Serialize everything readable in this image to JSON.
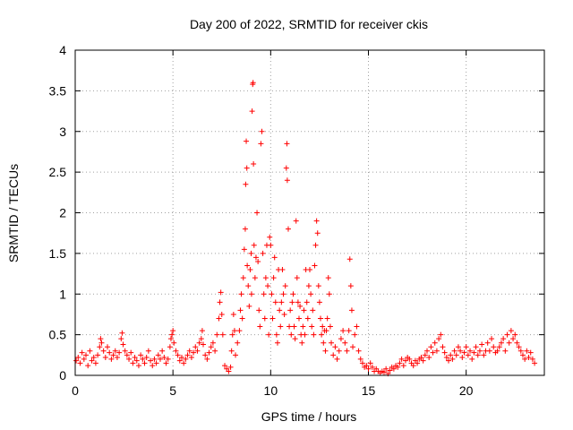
{
  "chart_data": {
    "type": "scatter",
    "title": "Day 200 of 2022, SRMTID for receiver ckis",
    "xlabel": "GPS time / hours",
    "ylabel": "SRMTID / TECUs",
    "xlim": [
      0,
      24
    ],
    "ylim": [
      0,
      4
    ],
    "xticks": [
      0,
      5,
      10,
      15,
      20
    ],
    "yticks": [
      0,
      0.5,
      1,
      1.5,
      2,
      2.5,
      3,
      3.5,
      4
    ],
    "grid": true,
    "marker": "+",
    "color": "#ff0000",
    "series": [
      {
        "name": "SRMTID",
        "points": [
          [
            0.05,
            0.18
          ],
          [
            0.15,
            0.22
          ],
          [
            0.25,
            0.15
          ],
          [
            0.35,
            0.28
          ],
          [
            0.45,
            0.2
          ],
          [
            0.55,
            0.25
          ],
          [
            0.65,
            0.12
          ],
          [
            0.75,
            0.3
          ],
          [
            0.85,
            0.18
          ],
          [
            0.95,
            0.22
          ],
          [
            1.05,
            0.15
          ],
          [
            1.15,
            0.25
          ],
          [
            1.25,
            0.35
          ],
          [
            1.3,
            0.45
          ],
          [
            1.35,
            0.4
          ],
          [
            1.45,
            0.3
          ],
          [
            1.55,
            0.22
          ],
          [
            1.65,
            0.35
          ],
          [
            1.75,
            0.28
          ],
          [
            1.85,
            0.2
          ],
          [
            1.95,
            0.25
          ],
          [
            2.05,
            0.3
          ],
          [
            2.15,
            0.22
          ],
          [
            2.25,
            0.28
          ],
          [
            2.35,
            0.45
          ],
          [
            2.4,
            0.52
          ],
          [
            2.45,
            0.38
          ],
          [
            2.55,
            0.3
          ],
          [
            2.65,
            0.25
          ],
          [
            2.75,
            0.2
          ],
          [
            2.85,
            0.28
          ],
          [
            2.95,
            0.15
          ],
          [
            3.05,
            0.22
          ],
          [
            3.15,
            0.18
          ],
          [
            3.25,
            0.12
          ],
          [
            3.35,
            0.25
          ],
          [
            3.45,
            0.2
          ],
          [
            3.55,
            0.15
          ],
          [
            3.65,
            0.22
          ],
          [
            3.75,
            0.3
          ],
          [
            3.85,
            0.18
          ],
          [
            3.95,
            0.12
          ],
          [
            4.05,
            0.2
          ],
          [
            4.15,
            0.15
          ],
          [
            4.25,
            0.25
          ],
          [
            4.35,
            0.2
          ],
          [
            4.45,
            0.3
          ],
          [
            4.55,
            0.22
          ],
          [
            4.65,
            0.15
          ],
          [
            4.75,
            0.2
          ],
          [
            4.85,
            0.35
          ],
          [
            4.9,
            0.45
          ],
          [
            4.95,
            0.5
          ],
          [
            5.0,
            0.55
          ],
          [
            5.05,
            0.4
          ],
          [
            5.15,
            0.3
          ],
          [
            5.25,
            0.25
          ],
          [
            5.35,
            0.18
          ],
          [
            5.45,
            0.22
          ],
          [
            5.55,
            0.15
          ],
          [
            5.65,
            0.2
          ],
          [
            5.75,
            0.25
          ],
          [
            5.85,
            0.3
          ],
          [
            5.95,
            0.22
          ],
          [
            6.05,
            0.28
          ],
          [
            6.15,
            0.35
          ],
          [
            6.25,
            0.3
          ],
          [
            6.35,
            0.4
          ],
          [
            6.45,
            0.45
          ],
          [
            6.5,
            0.55
          ],
          [
            6.55,
            0.38
          ],
          [
            6.65,
            0.25
          ],
          [
            6.75,
            0.2
          ],
          [
            6.85,
            0.28
          ],
          [
            6.95,
            0.35
          ],
          [
            7.05,
            0.4
          ],
          [
            7.15,
            0.3
          ],
          [
            7.25,
            0.5
          ],
          [
            7.35,
            0.7
          ],
          [
            7.4,
            0.9
          ],
          [
            7.45,
            1.02
          ],
          [
            7.5,
            0.75
          ],
          [
            7.55,
            0.5
          ],
          [
            7.65,
            0.12
          ],
          [
            7.75,
            0.08
          ],
          [
            7.85,
            0.05
          ],
          [
            7.95,
            0.1
          ],
          [
            8.0,
            0.3
          ],
          [
            8.05,
            0.5
          ],
          [
            8.1,
            0.75
          ],
          [
            8.15,
            0.55
          ],
          [
            8.2,
            0.25
          ],
          [
            8.3,
            0.4
          ],
          [
            8.4,
            0.55
          ],
          [
            8.45,
            0.8
          ],
          [
            8.5,
            1.0
          ],
          [
            8.55,
            0.7
          ],
          [
            8.6,
            1.2
          ],
          [
            8.65,
            1.55
          ],
          [
            8.7,
            1.8
          ],
          [
            8.72,
            2.35
          ],
          [
            8.75,
            2.88
          ],
          [
            8.78,
            2.55
          ],
          [
            8.8,
            1.35
          ],
          [
            8.85,
            1.1
          ],
          [
            8.9,
            0.85
          ],
          [
            8.95,
            1.3
          ],
          [
            9.0,
            1.5
          ],
          [
            9.02,
            1.0
          ],
          [
            9.05,
            3.25
          ],
          [
            9.08,
            3.58
          ],
          [
            9.1,
            3.6
          ],
          [
            9.12,
            2.6
          ],
          [
            9.15,
            1.6
          ],
          [
            9.2,
            1.2
          ],
          [
            9.25,
            1.45
          ],
          [
            9.3,
            2.0
          ],
          [
            9.35,
            1.4
          ],
          [
            9.4,
            0.8
          ],
          [
            9.45,
            0.6
          ],
          [
            9.5,
            2.85
          ],
          [
            9.55,
            3.0
          ],
          [
            9.6,
            1.5
          ],
          [
            9.65,
            1.0
          ],
          [
            9.7,
            0.7
          ],
          [
            9.75,
            1.2
          ],
          [
            9.8,
            1.6
          ],
          [
            9.85,
            1.1
          ],
          [
            9.9,
            0.5
          ],
          [
            9.95,
            1.7
          ],
          [
            10.0,
            1.6
          ],
          [
            10.05,
            1.0
          ],
          [
            10.1,
            0.7
          ],
          [
            10.15,
            1.2
          ],
          [
            10.2,
            1.45
          ],
          [
            10.25,
            0.9
          ],
          [
            10.3,
            0.5
          ],
          [
            10.35,
            0.4
          ],
          [
            10.4,
            1.3
          ],
          [
            10.45,
            0.8
          ],
          [
            10.5,
            0.6
          ],
          [
            10.55,
            0.9
          ],
          [
            10.6,
            1.3
          ],
          [
            10.65,
            1.0
          ],
          [
            10.7,
            0.75
          ],
          [
            10.75,
            1.1
          ],
          [
            10.8,
            2.55
          ],
          [
            10.83,
            2.85
          ],
          [
            10.85,
            2.4
          ],
          [
            10.9,
            1.8
          ],
          [
            10.95,
            0.6
          ],
          [
            11.0,
            0.8
          ],
          [
            11.05,
            0.5
          ],
          [
            11.1,
            0.9
          ],
          [
            11.15,
            1.0
          ],
          [
            11.2,
            0.6
          ],
          [
            11.25,
            0.45
          ],
          [
            11.3,
            1.9
          ],
          [
            11.35,
            1.2
          ],
          [
            11.4,
            0.9
          ],
          [
            11.45,
            0.7
          ],
          [
            11.5,
            0.85
          ],
          [
            11.55,
            0.5
          ],
          [
            11.6,
            0.4
          ],
          [
            11.65,
            0.6
          ],
          [
            11.7,
            0.8
          ],
          [
            11.75,
            0.5
          ],
          [
            11.8,
            1.3
          ],
          [
            11.85,
            0.9
          ],
          [
            11.9,
            0.7
          ],
          [
            11.95,
            1.1
          ],
          [
            12.0,
            1.3
          ],
          [
            12.05,
            1.0
          ],
          [
            12.1,
            0.6
          ],
          [
            12.15,
            0.8
          ],
          [
            12.2,
            0.5
          ],
          [
            12.25,
            1.35
          ],
          [
            12.3,
            1.6
          ],
          [
            12.35,
            1.9
          ],
          [
            12.4,
            1.75
          ],
          [
            12.45,
            1.1
          ],
          [
            12.5,
            0.9
          ],
          [
            12.55,
            0.7
          ],
          [
            12.6,
            0.5
          ],
          [
            12.65,
            0.6
          ],
          [
            12.7,
            0.4
          ],
          [
            12.75,
            0.55
          ],
          [
            12.8,
            0.3
          ],
          [
            12.85,
            0.55
          ],
          [
            12.9,
            0.7
          ],
          [
            12.95,
            1.2
          ],
          [
            13.0,
            1.0
          ],
          [
            13.05,
            0.6
          ],
          [
            13.1,
            0.4
          ],
          [
            13.2,
            0.25
          ],
          [
            13.3,
            0.35
          ],
          [
            13.4,
            0.2
          ],
          [
            13.5,
            0.3
          ],
          [
            13.6,
            0.45
          ],
          [
            13.7,
            0.55
          ],
          [
            13.8,
            0.4
          ],
          [
            13.9,
            0.3
          ],
          [
            14.0,
            0.55
          ],
          [
            14.05,
            1.43
          ],
          [
            14.1,
            1.1
          ],
          [
            14.15,
            0.8
          ],
          [
            14.2,
            0.35
          ],
          [
            14.3,
            0.5
          ],
          [
            14.4,
            0.6
          ],
          [
            14.5,
            0.3
          ],
          [
            14.6,
            0.2
          ],
          [
            14.7,
            0.15
          ],
          [
            14.8,
            0.1
          ],
          [
            14.9,
            0.12
          ],
          [
            15.0,
            0.08
          ],
          [
            15.1,
            0.15
          ],
          [
            15.2,
            0.1
          ],
          [
            15.3,
            0.05
          ],
          [
            15.4,
            0.08
          ],
          [
            15.5,
            0.05
          ],
          [
            15.6,
            0.03
          ],
          [
            15.7,
            0.05
          ],
          [
            15.8,
            0.04
          ],
          [
            15.9,
            0.08
          ],
          [
            16.0,
            0.02
          ],
          [
            16.1,
            0.06
          ],
          [
            16.2,
            0.1
          ],
          [
            16.3,
            0.08
          ],
          [
            16.4,
            0.12
          ],
          [
            16.5,
            0.1
          ],
          [
            16.6,
            0.15
          ],
          [
            16.7,
            0.2
          ],
          [
            16.8,
            0.12
          ],
          [
            16.9,
            0.18
          ],
          [
            17.0,
            0.22
          ],
          [
            17.1,
            0.2
          ],
          [
            17.2,
            0.15
          ],
          [
            17.3,
            0.12
          ],
          [
            17.4,
            0.18
          ],
          [
            17.5,
            0.15
          ],
          [
            17.6,
            0.2
          ],
          [
            17.7,
            0.22
          ],
          [
            17.8,
            0.18
          ],
          [
            17.9,
            0.25
          ],
          [
            18.0,
            0.3
          ],
          [
            18.1,
            0.22
          ],
          [
            18.2,
            0.35
          ],
          [
            18.3,
            0.28
          ],
          [
            18.4,
            0.4
          ],
          [
            18.5,
            0.3
          ],
          [
            18.6,
            0.45
          ],
          [
            18.7,
            0.5
          ],
          [
            18.8,
            0.35
          ],
          [
            18.9,
            0.28
          ],
          [
            19.0,
            0.22
          ],
          [
            19.1,
            0.18
          ],
          [
            19.2,
            0.25
          ],
          [
            19.3,
            0.2
          ],
          [
            19.4,
            0.3
          ],
          [
            19.5,
            0.25
          ],
          [
            19.6,
            0.35
          ],
          [
            19.7,
            0.3
          ],
          [
            19.8,
            0.22
          ],
          [
            19.9,
            0.28
          ],
          [
            20.0,
            0.35
          ],
          [
            20.1,
            0.25
          ],
          [
            20.2,
            0.3
          ],
          [
            20.3,
            0.2
          ],
          [
            20.4,
            0.28
          ],
          [
            20.5,
            0.35
          ],
          [
            20.6,
            0.25
          ],
          [
            20.7,
            0.3
          ],
          [
            20.8,
            0.38
          ],
          [
            20.9,
            0.25
          ],
          [
            21.0,
            0.3
          ],
          [
            21.1,
            0.4
          ],
          [
            21.2,
            0.3
          ],
          [
            21.3,
            0.45
          ],
          [
            21.4,
            0.35
          ],
          [
            21.5,
            0.28
          ],
          [
            21.6,
            0.3
          ],
          [
            21.7,
            0.35
          ],
          [
            21.8,
            0.4
          ],
          [
            21.9,
            0.45
          ],
          [
            22.0,
            0.3
          ],
          [
            22.1,
            0.5
          ],
          [
            22.2,
            0.4
          ],
          [
            22.3,
            0.55
          ],
          [
            22.4,
            0.45
          ],
          [
            22.5,
            0.5
          ],
          [
            22.6,
            0.4
          ],
          [
            22.7,
            0.35
          ],
          [
            22.8,
            0.3
          ],
          [
            22.9,
            0.25
          ],
          [
            23.0,
            0.2
          ],
          [
            23.1,
            0.3
          ],
          [
            23.2,
            0.22
          ],
          [
            23.3,
            0.28
          ],
          [
            23.4,
            0.2
          ],
          [
            23.5,
            0.15
          ]
        ]
      }
    ]
  }
}
